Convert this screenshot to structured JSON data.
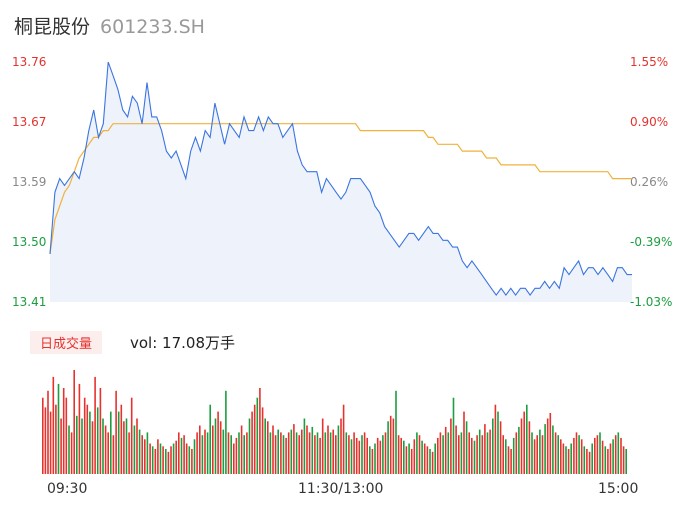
{
  "header": {
    "name": "桐昆股份",
    "code": "601233.SH"
  },
  "price_axis": {
    "left_labels": [
      "13.76",
      "13.67",
      "13.59",
      "13.50",
      "13.41"
    ],
    "right_labels": [
      "1.55%",
      "0.90%",
      "0.26%",
      "-0.39%",
      "-1.03%"
    ],
    "colors": {
      "up": "#e5322d",
      "down": "#1a9e3f",
      "neutral": "#888888"
    }
  },
  "volume": {
    "tag": "日成交量",
    "text": "vol: 17.08万手"
  },
  "time_axis": [
    "09:30",
    "11:30/13:00",
    "15:00"
  ],
  "colors": {
    "price_line": "#3a75e0",
    "avg_line": "#f0b23c",
    "fill": "#eef2fb",
    "vol_up": "#e5322d",
    "vol_down": "#1a9e3f"
  },
  "chart_data": {
    "type": "line",
    "ylim": [
      13.41,
      13.76
    ],
    "prev_close": 13.55,
    "x": [
      0,
      2,
      4,
      6,
      8,
      10,
      12,
      14,
      16,
      18,
      20,
      22,
      24,
      26,
      28,
      30,
      32,
      34,
      36,
      38,
      40,
      42,
      44,
      46,
      48,
      50,
      52,
      54,
      56,
      58,
      60,
      62,
      64,
      66,
      68,
      70,
      72,
      74,
      76,
      78,
      80,
      82,
      84,
      86,
      88,
      90,
      92,
      94,
      96,
      98,
      100,
      102,
      104,
      106,
      108,
      110,
      112,
      114,
      116,
      118,
      120,
      122,
      124,
      126,
      128,
      130,
      132,
      134,
      136,
      138,
      140,
      142,
      144,
      146,
      148,
      150,
      152,
      154,
      156,
      158,
      160,
      162,
      164,
      166,
      168,
      170,
      172,
      174,
      176,
      178,
      180,
      182,
      184,
      186,
      188,
      190,
      192,
      194,
      196,
      198,
      200,
      202,
      204,
      206,
      208,
      210,
      212,
      214,
      216,
      218,
      220,
      222,
      224,
      226,
      228,
      230,
      232,
      234,
      236,
      238,
      240
    ],
    "series": [
      {
        "values": [
          13.48,
          13.57,
          13.59,
          13.58,
          13.59,
          13.6,
          13.59,
          13.62,
          13.66,
          13.69,
          13.65,
          13.67,
          13.76,
          13.74,
          13.72,
          13.69,
          13.68,
          13.71,
          13.7,
          13.67,
          13.73,
          13.68,
          13.68,
          13.66,
          13.63,
          13.62,
          13.63,
          13.61,
          13.59,
          13.63,
          13.65,
          13.63,
          13.66,
          13.65,
          13.7,
          13.67,
          13.64,
          13.67,
          13.66,
          13.65,
          13.68,
          13.66,
          13.66,
          13.68,
          13.66,
          13.68,
          13.67,
          13.67,
          13.65,
          13.66,
          13.67,
          13.63,
          13.61,
          13.6,
          13.6,
          13.6,
          13.57,
          13.59,
          13.58,
          13.57,
          13.56,
          13.57,
          13.59,
          13.59,
          13.59,
          13.58,
          13.57,
          13.55,
          13.54,
          13.52,
          13.51,
          13.5,
          13.49,
          13.5,
          13.51,
          13.51,
          13.5,
          13.51,
          13.52,
          13.51,
          13.51,
          13.5,
          13.5,
          13.49,
          13.49,
          13.47,
          13.46,
          13.47,
          13.46,
          13.45,
          13.44,
          13.43,
          13.42,
          13.43,
          13.42,
          13.43,
          13.42,
          13.43,
          13.43,
          13.42,
          13.43,
          13.43,
          13.44,
          13.43,
          13.44,
          13.43,
          13.46,
          13.45,
          13.46,
          13.47,
          13.45,
          13.46,
          13.46,
          13.45,
          13.46,
          13.45,
          13.44,
          13.46,
          13.46,
          13.45,
          13.45
        ]
      },
      {
        "values": [
          13.48,
          13.53,
          13.55,
          13.57,
          13.58,
          13.6,
          13.62,
          13.63,
          13.64,
          13.65,
          13.65,
          13.66,
          13.66,
          13.67,
          13.67,
          13.67,
          13.67,
          13.67,
          13.67,
          13.67,
          13.67,
          13.67,
          13.67,
          13.67,
          13.67,
          13.67,
          13.67,
          13.67,
          13.67,
          13.67,
          13.67,
          13.67,
          13.67,
          13.67,
          13.67,
          13.67,
          13.67,
          13.67,
          13.67,
          13.67,
          13.67,
          13.67,
          13.67,
          13.67,
          13.67,
          13.67,
          13.67,
          13.67,
          13.67,
          13.67,
          13.67,
          13.67,
          13.67,
          13.67,
          13.67,
          13.67,
          13.67,
          13.67,
          13.67,
          13.67,
          13.67,
          13.67,
          13.67,
          13.67,
          13.66,
          13.66,
          13.66,
          13.66,
          13.66,
          13.66,
          13.66,
          13.66,
          13.66,
          13.66,
          13.66,
          13.66,
          13.66,
          13.66,
          13.65,
          13.65,
          13.64,
          13.64,
          13.64,
          13.64,
          13.64,
          13.63,
          13.63,
          13.63,
          13.63,
          13.63,
          13.62,
          13.62,
          13.62,
          13.61,
          13.61,
          13.61,
          13.61,
          13.61,
          13.61,
          13.61,
          13.61,
          13.6,
          13.6,
          13.6,
          13.6,
          13.6,
          13.6,
          13.6,
          13.6,
          13.6,
          13.6,
          13.6,
          13.6,
          13.6,
          13.6,
          13.6,
          13.59,
          13.59,
          13.59,
          13.59,
          13.59
        ]
      }
    ],
    "volume_values": [
      55,
      48,
      60,
      45,
      70,
      50,
      65,
      40,
      62,
      55,
      35,
      30,
      75,
      42,
      65,
      40,
      55,
      50,
      45,
      38,
      70,
      48,
      62,
      40,
      35,
      30,
      45,
      28,
      60,
      45,
      50,
      38,
      40,
      30,
      55,
      35,
      40,
      32,
      28,
      25,
      30,
      22,
      20,
      18,
      25,
      22,
      20,
      18,
      16,
      20,
      22,
      24,
      30,
      26,
      28,
      22,
      20,
      18,
      25,
      30,
      35,
      28,
      32,
      30,
      50,
      35,
      40,
      45,
      38,
      32,
      60,
      30,
      28,
      22,
      26,
      30,
      35,
      28,
      30,
      40,
      45,
      50,
      55,
      62,
      48,
      40,
      38,
      30,
      35,
      28,
      32,
      30,
      28,
      26,
      30,
      32,
      36,
      30,
      28,
      32,
      40,
      35,
      30,
      34,
      28,
      30,
      26,
      40,
      30,
      35,
      30,
      32,
      28,
      35,
      40,
      50,
      30,
      28,
      25,
      30,
      26,
      24,
      28,
      30,
      26,
      20,
      18,
      22,
      26,
      24,
      28,
      30,
      38,
      42,
      40,
      60,
      28,
      26,
      24,
      20,
      22,
      18,
      25,
      30,
      28,
      24,
      22,
      20,
      18,
      16,
      22,
      26,
      30,
      28,
      34,
      30,
      40,
      55,
      35,
      28,
      30,
      45,
      38,
      30,
      26,
      24,
      28,
      32,
      28,
      36,
      30,
      32,
      40,
      50,
      45,
      38,
      28,
      25,
      20,
      18,
      26,
      30,
      34,
      40,
      45,
      50,
      38,
      30,
      25,
      28,
      32,
      28,
      36,
      40,
      44,
      35,
      30,
      28,
      25,
      22,
      20,
      18,
      22,
      26,
      30,
      28,
      25,
      20,
      18,
      16,
      22,
      26,
      28,
      30,
      24,
      20,
      18,
      22,
      25,
      28,
      30,
      26,
      20,
      18
    ],
    "volume_up": [
      1,
      1,
      1,
      1,
      1,
      1,
      0,
      1,
      1,
      1,
      0,
      1,
      1,
      0,
      1,
      0,
      1,
      1,
      0,
      1,
      1,
      0,
      1,
      0,
      1,
      1,
      0,
      1,
      1,
      0,
      1,
      1,
      0,
      1,
      1,
      0,
      1,
      0,
      1,
      1,
      0,
      1,
      0,
      1,
      1,
      0,
      1,
      0,
      1,
      1,
      0,
      1,
      1,
      0,
      1,
      1,
      0,
      1,
      0,
      1,
      1,
      0,
      1,
      0,
      0,
      1,
      0,
      1,
      1,
      0,
      0,
      1,
      0,
      1,
      1,
      0,
      1,
      0,
      1,
      0,
      1,
      1,
      0,
      1,
      1,
      0,
      1,
      0,
      1,
      1,
      0,
      1,
      0,
      1,
      1,
      0,
      1,
      0,
      1,
      1,
      0,
      1,
      1,
      0,
      1,
      0,
      1,
      1,
      0,
      1,
      0,
      1,
      1,
      0,
      1,
      1,
      0,
      1,
      0,
      1,
      1,
      1,
      0,
      1,
      1,
      0,
      1,
      0,
      1,
      1,
      0,
      1,
      0,
      1,
      1,
      0,
      1,
      1,
      0,
      1,
      0,
      1,
      1,
      0,
      1,
      0,
      1,
      1,
      0,
      1,
      0,
      1,
      1,
      0,
      1,
      0,
      1,
      0,
      1,
      1,
      0,
      1,
      0,
      1,
      1,
      0,
      1,
      0,
      1,
      1,
      0,
      1,
      0,
      1,
      0,
      1,
      1,
      0,
      1,
      1,
      0,
      1,
      0,
      1,
      1,
      0,
      1,
      0,
      1,
      1,
      0,
      1,
      0,
      1,
      1,
      0,
      1,
      0,
      1,
      1,
      0,
      1,
      0,
      1,
      1,
      0,
      1,
      0,
      1,
      1,
      0,
      1,
      1,
      0,
      1,
      0,
      1,
      1,
      0,
      1,
      0,
      1,
      1,
      0,
      1
    ]
  }
}
